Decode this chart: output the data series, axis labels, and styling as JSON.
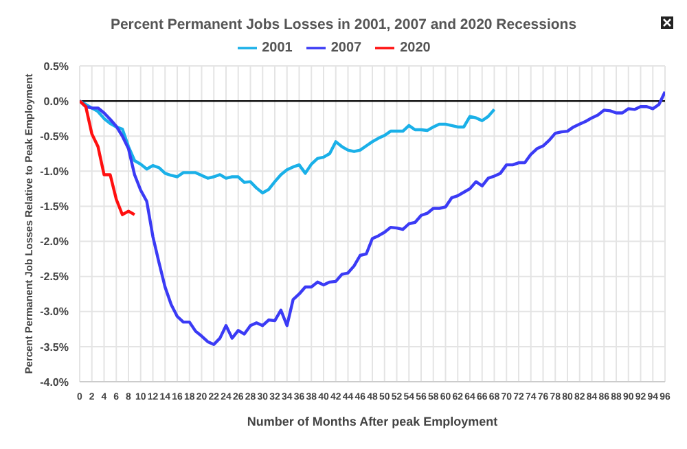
{
  "chart_data": {
    "type": "line",
    "title": "Percent Permanent Jobs Losses in 2001, 2007 and 2020 Recessions",
    "xlabel": "Number of Months After peak Employment",
    "ylabel": "Percent Permanent Job Losses Relative to Peak Employment",
    "series": [
      {
        "name": "2001",
        "color": "#1ab0e8",
        "x": [
          0,
          1,
          2,
          3,
          4,
          5,
          6,
          7,
          8,
          9,
          10,
          11,
          12,
          13,
          14,
          15,
          16,
          17,
          18,
          19,
          20,
          21,
          22,
          23,
          24,
          25,
          26,
          27,
          28,
          29,
          30,
          31,
          32,
          33,
          34,
          35,
          36,
          37,
          38,
          39,
          40,
          41,
          42,
          43,
          44,
          45,
          46,
          47,
          48,
          49,
          50,
          51,
          52,
          53,
          54,
          55,
          56,
          57,
          58,
          59,
          60,
          61,
          62,
          63,
          64,
          65,
          66,
          67,
          68
        ],
        "values": [
          0,
          -0.05,
          -0.1,
          -0.15,
          -0.25,
          -0.32,
          -0.37,
          -0.4,
          -0.65,
          -0.85,
          -0.9,
          -0.97,
          -0.92,
          -0.95,
          -1.03,
          -1.06,
          -1.08,
          -1.02,
          -1.02,
          -1.02,
          -1.06,
          -1.1,
          -1.08,
          -1.05,
          -1.1,
          -1.08,
          -1.08,
          -1.16,
          -1.15,
          -1.24,
          -1.31,
          -1.26,
          -1.15,
          -1.05,
          -0.98,
          -0.94,
          -0.91,
          -1.03,
          -0.9,
          -0.82,
          -0.8,
          -0.75,
          -0.58,
          -0.65,
          -0.7,
          -0.72,
          -0.7,
          -0.64,
          -0.58,
          -0.53,
          -0.49,
          -0.43,
          -0.43,
          -0.43,
          -0.35,
          -0.41,
          -0.41,
          -0.42,
          -0.37,
          -0.33,
          -0.33,
          -0.35,
          -0.37,
          -0.37,
          -0.22,
          -0.24,
          -0.28,
          -0.22,
          -0.12
        ]
      },
      {
        "name": "2007",
        "color": "#3b3bf5",
        "x": [
          0,
          1,
          2,
          3,
          4,
          5,
          6,
          7,
          8,
          9,
          10,
          11,
          12,
          13,
          14,
          15,
          16,
          17,
          18,
          19,
          20,
          21,
          22,
          23,
          24,
          25,
          26,
          27,
          28,
          29,
          30,
          31,
          32,
          33,
          34,
          35,
          36,
          37,
          38,
          39,
          40,
          41,
          42,
          43,
          44,
          45,
          46,
          47,
          48,
          49,
          50,
          51,
          52,
          53,
          54,
          55,
          56,
          57,
          58,
          59,
          60,
          61,
          62,
          63,
          64,
          65,
          66,
          67,
          68,
          69,
          70,
          71,
          72,
          73,
          74,
          75,
          76,
          77,
          78,
          79,
          80,
          81,
          82,
          83,
          84,
          85,
          86,
          87,
          88,
          89,
          90,
          91,
          92,
          93,
          94,
          95,
          96
        ],
        "values": [
          0,
          -0.08,
          -0.1,
          -0.1,
          -0.17,
          -0.26,
          -0.36,
          -0.5,
          -0.68,
          -1.05,
          -1.27,
          -1.43,
          -1.93,
          -2.3,
          -2.65,
          -2.9,
          -3.07,
          -3.15,
          -3.15,
          -3.28,
          -3.35,
          -3.43,
          -3.47,
          -3.38,
          -3.2,
          -3.38,
          -3.27,
          -3.32,
          -3.2,
          -3.16,
          -3.2,
          -3.12,
          -3.13,
          -2.98,
          -3.2,
          -2.83,
          -2.75,
          -2.65,
          -2.65,
          -2.58,
          -2.62,
          -2.58,
          -2.57,
          -2.47,
          -2.45,
          -2.35,
          -2.2,
          -2.18,
          -1.96,
          -1.92,
          -1.87,
          -1.8,
          -1.81,
          -1.83,
          -1.75,
          -1.73,
          -1.63,
          -1.6,
          -1.53,
          -1.53,
          -1.51,
          -1.38,
          -1.35,
          -1.3,
          -1.25,
          -1.15,
          -1.21,
          -1.1,
          -1.07,
          -1.03,
          -0.91,
          -0.91,
          -0.88,
          -0.88,
          -0.76,
          -0.68,
          -0.64,
          -0.56,
          -0.46,
          -0.44,
          -0.43,
          -0.37,
          -0.33,
          -0.29,
          -0.24,
          -0.2,
          -0.13,
          -0.14,
          -0.17,
          -0.17,
          -0.11,
          -0.12,
          -0.08,
          -0.08,
          -0.11,
          -0.05,
          0.13
        ]
      },
      {
        "name": "2020",
        "color": "#ff1010",
        "x": [
          0,
          1,
          2,
          3,
          4,
          5,
          6,
          7,
          8,
          9
        ],
        "values": [
          0,
          -0.08,
          -0.47,
          -0.65,
          -1.05,
          -1.05,
          -1.4,
          -1.62,
          -1.57,
          -1.62
        ]
      }
    ],
    "xlim": [
      0,
      96
    ],
    "xticks": [
      0,
      2,
      4,
      6,
      8,
      10,
      12,
      14,
      16,
      18,
      20,
      22,
      24,
      26,
      28,
      30,
      32,
      34,
      36,
      38,
      40,
      42,
      44,
      46,
      48,
      50,
      52,
      54,
      56,
      58,
      60,
      62,
      64,
      66,
      68,
      70,
      72,
      74,
      76,
      78,
      80,
      82,
      84,
      86,
      88,
      90,
      92,
      94,
      96
    ],
    "ylim": [
      -4,
      0.5
    ],
    "yticks": [
      {
        "value": -4,
        "label": "-4.0%"
      },
      {
        "value": -3.5,
        "label": "-3.5%"
      },
      {
        "value": -3,
        "label": "-3.0%"
      },
      {
        "value": -2.5,
        "label": "-2.5%"
      },
      {
        "value": -2,
        "label": "-2.0%"
      },
      {
        "value": -1.5,
        "label": "-1.5%"
      },
      {
        "value": -1,
        "label": "-1.0%"
      },
      {
        "value": -0.5,
        "label": "-0.5%"
      },
      {
        "value": 0,
        "label": "0.0%"
      },
      {
        "value": 0.5,
        "label": "0.5%"
      }
    ],
    "ref_lines": [
      {
        "axis": "y",
        "value": 0,
        "color": "#000000"
      }
    ],
    "grid": true,
    "legend": "top",
    "marker": "none",
    "line_style": "solid"
  }
}
